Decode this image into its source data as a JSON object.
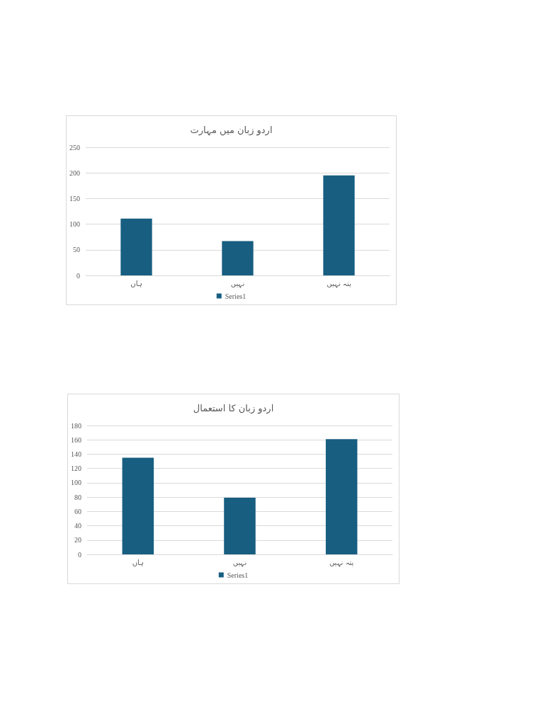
{
  "chart_data": [
    {
      "type": "bar",
      "title": "اردو زبان میں مہارت",
      "categories": [
        "ہاں",
        "نہیں",
        "پتہ نہیں"
      ],
      "series": [
        {
          "name": "Series1",
          "color": "#175e81",
          "values": [
            111,
            67,
            195
          ]
        }
      ],
      "ylim": [
        0,
        250
      ],
      "yticks": [
        0,
        50,
        100,
        150,
        200,
        250
      ],
      "grid": "y",
      "legend": "bottom"
    },
    {
      "type": "bar",
      "title": "اردو زبان کا استعمال",
      "categories": [
        "ہاں",
        "نہیں",
        "پتہ نہیں"
      ],
      "series": [
        {
          "name": "Series1",
          "color": "#175e81",
          "values": [
            135,
            79,
            161
          ]
        }
      ],
      "ylim": [
        0,
        180
      ],
      "yticks": [
        0,
        20,
        40,
        60,
        80,
        100,
        120,
        140,
        160,
        180
      ],
      "grid": "y",
      "legend": "bottom"
    }
  ]
}
